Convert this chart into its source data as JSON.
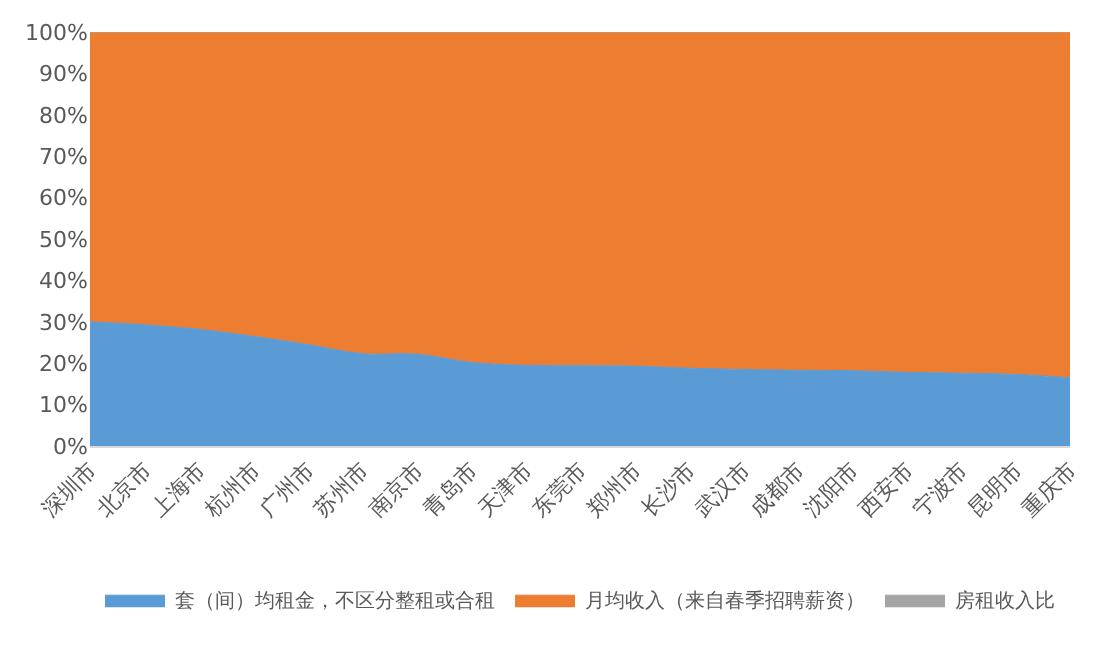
{
  "chart_data": {
    "type": "area",
    "stacked": true,
    "categories": [
      "深圳市",
      "北京市",
      "上海市",
      "杭州市",
      "广州市",
      "苏州市",
      "南京市",
      "青岛市",
      "天津市",
      "东莞市",
      "郑州市",
      "长沙市",
      "武汉市",
      "成都市",
      "沈阳市",
      "西安市",
      "宁波市",
      "昆明市",
      "重庆市"
    ],
    "series": [
      {
        "name": "套（间）均租金，不区分整租或合租",
        "color": "#5b9bd5",
        "values": [
          30,
          29.3,
          28.2,
          26.5,
          24.5,
          22.3,
          22.2,
          20.2,
          19.5,
          19.4,
          19.3,
          18.8,
          18.5,
          18.3,
          18.2,
          17.8,
          17.6,
          17.3,
          16.5
        ]
      },
      {
        "name": "月均收入（来自春季招聘薪资）",
        "color": "#ed7d31",
        "values": [
          70,
          70.7,
          71.8,
          73.5,
          75.5,
          77.7,
          77.8,
          79.8,
          80.5,
          80.6,
          80.7,
          81.2,
          81.5,
          81.7,
          81.8,
          82.2,
          82.4,
          82.7,
          83.5
        ]
      },
      {
        "name": "房租收入比",
        "color": "#a5a5a5",
        "values": [
          null,
          null,
          null,
          null,
          null,
          null,
          null,
          null,
          null,
          null,
          null,
          null,
          null,
          null,
          null,
          null,
          null,
          null,
          null
        ]
      }
    ],
    "ylim": [
      0,
      100
    ],
    "yticks": [
      {
        "value": 0,
        "label": "0%"
      },
      {
        "value": 10,
        "label": "10%"
      },
      {
        "value": 20,
        "label": "20%"
      },
      {
        "value": 30,
        "label": "30%"
      },
      {
        "value": 40,
        "label": "40%"
      },
      {
        "value": 50,
        "label": "50%"
      },
      {
        "value": 60,
        "label": "60%"
      },
      {
        "value": 70,
        "label": "70%"
      },
      {
        "value": 80,
        "label": "80%"
      },
      {
        "value": 90,
        "label": "90%"
      },
      {
        "value": 100,
        "label": "100%"
      }
    ],
    "legend": "bottom"
  }
}
